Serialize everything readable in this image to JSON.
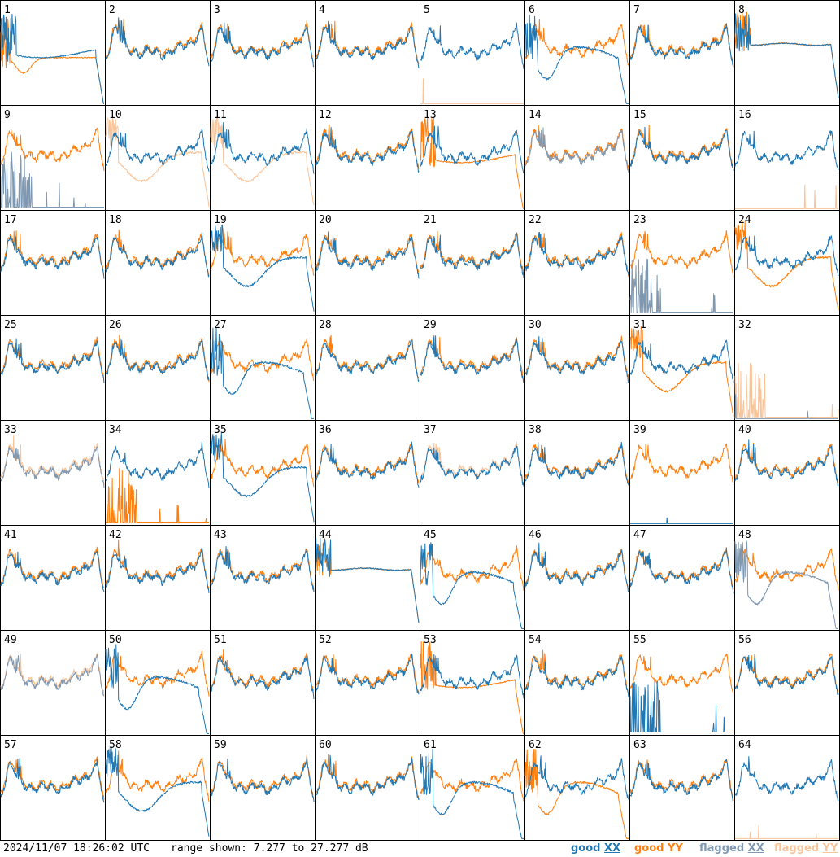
{
  "footer": {
    "timestamp": "2024/11/07 18:26:02 UTC",
    "range_text": "range shown: 7.277 to 27.277 dB",
    "legend": [
      {
        "prefix": "good ",
        "pol": "XX",
        "color": "#1f77b4"
      },
      {
        "prefix": "good ",
        "pol": "YY",
        "color": "#ff7f0e"
      },
      {
        "prefix": "flagged ",
        "pol": "XX",
        "color": "#7f98b2"
      },
      {
        "prefix": "flagged ",
        "pol": "YY",
        "color": "#f8c49a"
      }
    ]
  },
  "colors": {
    "good_xx": "#1f77b4",
    "good_yy": "#ff7f0e",
    "flagged_xx": "#7f98b2",
    "flagged_yy": "#f8c49a"
  },
  "chart_data": {
    "type": "line",
    "title": "",
    "grid": {
      "rows": 8,
      "cols": 8
    },
    "ylim": [
      7.277,
      27.277
    ],
    "yunits": "dB",
    "series_names": [
      "XX",
      "YY"
    ],
    "panels": [
      {
        "label": "1",
        "xx": {
          "status": "good",
          "shape": "lowflat"
        },
        "yy": {
          "status": "good",
          "shape": "lowdip"
        }
      },
      {
        "label": "2",
        "xx": {
          "status": "good",
          "shape": "normal"
        },
        "yy": {
          "status": "good",
          "shape": "normal"
        }
      },
      {
        "label": "3",
        "xx": {
          "status": "good",
          "shape": "normal"
        },
        "yy": {
          "status": "good",
          "shape": "normal"
        }
      },
      {
        "label": "4",
        "xx": {
          "status": "good",
          "shape": "normal"
        },
        "yy": {
          "status": "good",
          "shape": "normal"
        }
      },
      {
        "label": "5",
        "xx": {
          "status": "good",
          "shape": "normal"
        },
        "yy": {
          "status": "flagged",
          "shape": "flat0"
        }
      },
      {
        "label": "6",
        "xx": {
          "status": "good",
          "shape": "dipdeep"
        },
        "yy": {
          "status": "good",
          "shape": "normal"
        }
      },
      {
        "label": "7",
        "xx": {
          "status": "good",
          "shape": "normal"
        },
        "yy": {
          "status": "good",
          "shape": "normal"
        }
      },
      {
        "label": "8",
        "xx": {
          "status": "good",
          "shape": "flat"
        },
        "yy": {
          "status": "good",
          "shape": "flat"
        }
      },
      {
        "label": "9",
        "xx": {
          "status": "flagged",
          "shape": "spiky"
        },
        "yy": {
          "status": "good",
          "shape": "normal"
        }
      },
      {
        "label": "10",
        "xx": {
          "status": "good",
          "shape": "normal"
        },
        "yy": {
          "status": "flagged",
          "shape": "dip"
        }
      },
      {
        "label": "11",
        "xx": {
          "status": "good",
          "shape": "normal"
        },
        "yy": {
          "status": "flagged",
          "shape": "dip"
        }
      },
      {
        "label": "12",
        "xx": {
          "status": "good",
          "shape": "normal"
        },
        "yy": {
          "status": "good",
          "shape": "normal"
        }
      },
      {
        "label": "13",
        "xx": {
          "status": "good",
          "shape": "normal"
        },
        "yy": {
          "status": "good",
          "shape": "lowflat"
        }
      },
      {
        "label": "14",
        "xx": {
          "status": "flagged",
          "shape": "normal"
        },
        "yy": {
          "status": "good",
          "shape": "normal"
        }
      },
      {
        "label": "15",
        "xx": {
          "status": "good",
          "shape": "normal"
        },
        "yy": {
          "status": "good",
          "shape": "normal"
        }
      },
      {
        "label": "16",
        "xx": {
          "status": "good",
          "shape": "normal"
        },
        "yy": {
          "status": "flagged",
          "shape": "flat0"
        }
      },
      {
        "label": "17",
        "xx": {
          "status": "good",
          "shape": "normal"
        },
        "yy": {
          "status": "good",
          "shape": "normal"
        }
      },
      {
        "label": "18",
        "xx": {
          "status": "good",
          "shape": "normal"
        },
        "yy": {
          "status": "good",
          "shape": "normal"
        }
      },
      {
        "label": "19",
        "xx": {
          "status": "good",
          "shape": "dip"
        },
        "yy": {
          "status": "good",
          "shape": "normal"
        }
      },
      {
        "label": "20",
        "xx": {
          "status": "good",
          "shape": "normal"
        },
        "yy": {
          "status": "good",
          "shape": "normal"
        }
      },
      {
        "label": "21",
        "xx": {
          "status": "good",
          "shape": "normal"
        },
        "yy": {
          "status": "good",
          "shape": "normal"
        }
      },
      {
        "label": "22",
        "xx": {
          "status": "good",
          "shape": "normal"
        },
        "yy": {
          "status": "good",
          "shape": "normal"
        }
      },
      {
        "label": "23",
        "xx": {
          "status": "flagged",
          "shape": "spiky"
        },
        "yy": {
          "status": "good",
          "shape": "normal"
        }
      },
      {
        "label": "24",
        "xx": {
          "status": "good",
          "shape": "normal"
        },
        "yy": {
          "status": "good",
          "shape": "dip"
        }
      },
      {
        "label": "25",
        "xx": {
          "status": "good",
          "shape": "normal"
        },
        "yy": {
          "status": "good",
          "shape": "normal"
        }
      },
      {
        "label": "26",
        "xx": {
          "status": "good",
          "shape": "normal"
        },
        "yy": {
          "status": "good",
          "shape": "normal"
        }
      },
      {
        "label": "27",
        "xx": {
          "status": "good",
          "shape": "dipdeep"
        },
        "yy": {
          "status": "good",
          "shape": "normal"
        }
      },
      {
        "label": "28",
        "xx": {
          "status": "good",
          "shape": "normal"
        },
        "yy": {
          "status": "good",
          "shape": "normal"
        }
      },
      {
        "label": "29",
        "xx": {
          "status": "good",
          "shape": "normal"
        },
        "yy": {
          "status": "good",
          "shape": "normal"
        }
      },
      {
        "label": "30",
        "xx": {
          "status": "good",
          "shape": "normal"
        },
        "yy": {
          "status": "good",
          "shape": "normal"
        }
      },
      {
        "label": "31",
        "xx": {
          "status": "good",
          "shape": "normal"
        },
        "yy": {
          "status": "good",
          "shape": "dip"
        }
      },
      {
        "label": "32",
        "xx": {
          "status": "flagged",
          "shape": "flat0"
        },
        "yy": {
          "status": "flagged",
          "shape": "spiky"
        }
      },
      {
        "label": "33",
        "xx": {
          "status": "flagged",
          "shape": "normal"
        },
        "yy": {
          "status": "flagged",
          "shape": "normal"
        }
      },
      {
        "label": "34",
        "xx": {
          "status": "good",
          "shape": "normal"
        },
        "yy": {
          "status": "good",
          "shape": "spiky"
        }
      },
      {
        "label": "35",
        "xx": {
          "status": "good",
          "shape": "dip"
        },
        "yy": {
          "status": "good",
          "shape": "normal"
        }
      },
      {
        "label": "36",
        "xx": {
          "status": "good",
          "shape": "normal"
        },
        "yy": {
          "status": "good",
          "shape": "normal"
        }
      },
      {
        "label": "37",
        "xx": {
          "status": "good",
          "shape": "normal"
        },
        "yy": {
          "status": "flagged",
          "shape": "normal"
        }
      },
      {
        "label": "38",
        "xx": {
          "status": "good",
          "shape": "normal"
        },
        "yy": {
          "status": "good",
          "shape": "normal"
        }
      },
      {
        "label": "39",
        "xx": {
          "status": "good",
          "shape": "flat0"
        },
        "yy": {
          "status": "good",
          "shape": "normal"
        }
      },
      {
        "label": "40",
        "xx": {
          "status": "good",
          "shape": "normal"
        },
        "yy": {
          "status": "good",
          "shape": "normal"
        }
      },
      {
        "label": "41",
        "xx": {
          "status": "good",
          "shape": "normal"
        },
        "yy": {
          "status": "good",
          "shape": "normal"
        }
      },
      {
        "label": "42",
        "xx": {
          "status": "good",
          "shape": "normal"
        },
        "yy": {
          "status": "good",
          "shape": "normal"
        }
      },
      {
        "label": "43",
        "xx": {
          "status": "good",
          "shape": "normal"
        },
        "yy": {
          "status": "good",
          "shape": "normal"
        }
      },
      {
        "label": "44",
        "xx": {
          "status": "good",
          "shape": "flat"
        },
        "yy": {
          "status": "good",
          "shape": "flat"
        }
      },
      {
        "label": "45",
        "xx": {
          "status": "good",
          "shape": "dipdeep"
        },
        "yy": {
          "status": "good",
          "shape": "normal"
        }
      },
      {
        "label": "46",
        "xx": {
          "status": "good",
          "shape": "normal"
        },
        "yy": {
          "status": "good",
          "shape": "normal"
        }
      },
      {
        "label": "47",
        "xx": {
          "status": "good",
          "shape": "normal"
        },
        "yy": {
          "status": "good",
          "shape": "normal"
        }
      },
      {
        "label": "48",
        "xx": {
          "status": "flagged",
          "shape": "dipdeep"
        },
        "yy": {
          "status": "good",
          "shape": "normal"
        }
      },
      {
        "label": "49",
        "xx": {
          "status": "flagged",
          "shape": "normal"
        },
        "yy": {
          "status": "flagged",
          "shape": "normal"
        }
      },
      {
        "label": "50",
        "xx": {
          "status": "good",
          "shape": "dipdeep"
        },
        "yy": {
          "status": "good",
          "shape": "normal"
        }
      },
      {
        "label": "51",
        "xx": {
          "status": "good",
          "shape": "normal"
        },
        "yy": {
          "status": "good",
          "shape": "normal"
        }
      },
      {
        "label": "52",
        "xx": {
          "status": "good",
          "shape": "normal"
        },
        "yy": {
          "status": "good",
          "shape": "normal"
        }
      },
      {
        "label": "53",
        "xx": {
          "status": "good",
          "shape": "normal"
        },
        "yy": {
          "status": "good",
          "shape": "lowflat"
        }
      },
      {
        "label": "54",
        "xx": {
          "status": "good",
          "shape": "normal"
        },
        "yy": {
          "status": "good",
          "shape": "normal"
        }
      },
      {
        "label": "55",
        "xx": {
          "status": "good",
          "shape": "spiky"
        },
        "yy": {
          "status": "good",
          "shape": "normal"
        }
      },
      {
        "label": "56",
        "xx": {
          "status": "good",
          "shape": "normal"
        },
        "yy": {
          "status": "good",
          "shape": "normal"
        }
      },
      {
        "label": "57",
        "xx": {
          "status": "good",
          "shape": "normal"
        },
        "yy": {
          "status": "good",
          "shape": "normal"
        }
      },
      {
        "label": "58",
        "xx": {
          "status": "good",
          "shape": "dip"
        },
        "yy": {
          "status": "good",
          "shape": "normal"
        }
      },
      {
        "label": "59",
        "xx": {
          "status": "good",
          "shape": "normal"
        },
        "yy": {
          "status": "good",
          "shape": "normal"
        }
      },
      {
        "label": "60",
        "xx": {
          "status": "good",
          "shape": "normal"
        },
        "yy": {
          "status": "good",
          "shape": "normal"
        }
      },
      {
        "label": "61",
        "xx": {
          "status": "good",
          "shape": "dipdeep"
        },
        "yy": {
          "status": "good",
          "shape": "normal"
        }
      },
      {
        "label": "62",
        "xx": {
          "status": "good",
          "shape": "normal"
        },
        "yy": {
          "status": "good",
          "shape": "dipdeep"
        }
      },
      {
        "label": "63",
        "xx": {
          "status": "good",
          "shape": "normal"
        },
        "yy": {
          "status": "good",
          "shape": "normal"
        }
      },
      {
        "label": "64",
        "xx": {
          "status": "good",
          "shape": "normal"
        },
        "yy": {
          "status": "flagged",
          "shape": "flat0"
        }
      }
    ]
  }
}
